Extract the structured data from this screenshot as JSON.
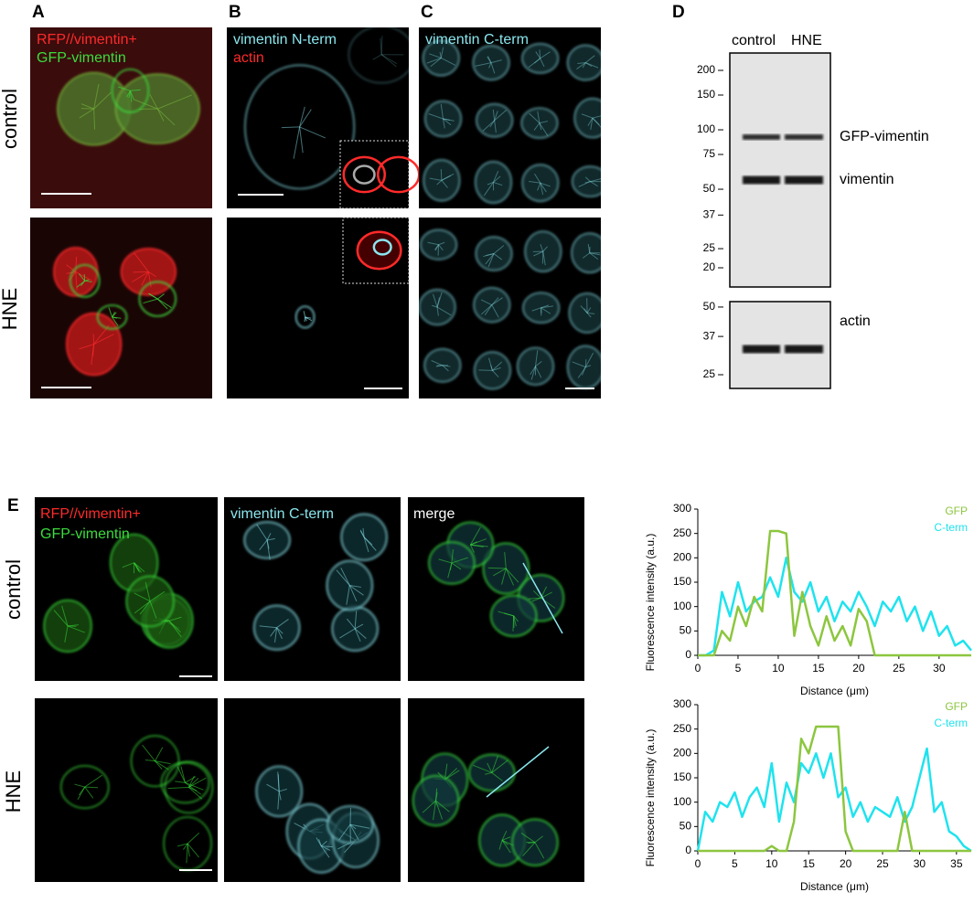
{
  "panel_a": {
    "label": "A",
    "channels": [
      "RFP//vimentin+",
      "GFP-vimentin"
    ]
  },
  "row_labels": [
    "control",
    "HNE"
  ],
  "panel_b": {
    "label": "B",
    "channels": [
      "vimentin N-term",
      "actin"
    ]
  },
  "panel_c": {
    "label": "C",
    "channels": [
      "vimentin C-term"
    ]
  },
  "panel_d": {
    "label": "D",
    "lanes": [
      "control",
      "HNE"
    ],
    "markers_top": [
      200,
      150,
      100,
      75,
      50,
      37,
      25,
      20
    ],
    "markers_bottom": [
      50,
      37,
      25
    ],
    "bands": [
      "GFP-vimentin",
      "vimentin",
      "actin"
    ]
  },
  "panel_e": {
    "label": "E",
    "channels": [
      "RFP//vimentin+",
      "GFP-vimentin"
    ],
    "columns": [
      "vimentin C-term",
      "merge"
    ]
  },
  "chart_data": [
    {
      "type": "line",
      "x_label": "Distance (μm)",
      "y_label": "Fluorescence intensity (a.u.)",
      "x": [
        0,
        1,
        2,
        3,
        4,
        5,
        6,
        7,
        8,
        9,
        10,
        11,
        12,
        13,
        14,
        15,
        16,
        17,
        18,
        19,
        20,
        21,
        22,
        23,
        24,
        25,
        26,
        27,
        28,
        29,
        30,
        31,
        32,
        33,
        34
      ],
      "series": [
        {
          "name": "GFP",
          "color": "#8cc63f",
          "values": [
            0,
            0,
            0,
            50,
            30,
            100,
            60,
            120,
            90,
            255,
            255,
            250,
            40,
            130,
            60,
            20,
            80,
            30,
            60,
            20,
            95,
            70,
            0,
            0,
            0,
            0,
            0,
            0,
            0,
            0,
            0,
            0,
            0,
            0,
            0
          ]
        },
        {
          "name": "C-term",
          "color": "#1ee3ee",
          "values": [
            0,
            0,
            10,
            130,
            80,
            150,
            90,
            110,
            120,
            160,
            120,
            200,
            130,
            110,
            150,
            90,
            120,
            70,
            110,
            90,
            130,
            100,
            60,
            110,
            90,
            120,
            70,
            100,
            50,
            90,
            40,
            60,
            20,
            30,
            10
          ]
        }
      ],
      "xlim": [
        0,
        34
      ],
      "ylim": [
        0,
        300
      ],
      "xticks": [
        0,
        5,
        10,
        15,
        20,
        25,
        30
      ],
      "yticks": [
        0,
        50,
        100,
        150,
        200,
        250,
        300
      ]
    },
    {
      "type": "line",
      "x_label": "Distance (μm)",
      "y_label": "Fluorescence intensity (a.u.)",
      "x": [
        0,
        1,
        2,
        3,
        4,
        5,
        6,
        7,
        8,
        9,
        10,
        11,
        12,
        13,
        14,
        15,
        16,
        17,
        18,
        19,
        20,
        21,
        22,
        23,
        24,
        25,
        26,
        27,
        28,
        29,
        30,
        31,
        32,
        33,
        34,
        35,
        36,
        37
      ],
      "series": [
        {
          "name": "GFP",
          "color": "#8cc63f",
          "values": [
            0,
            0,
            0,
            0,
            0,
            0,
            0,
            0,
            0,
            0,
            10,
            0,
            0,
            60,
            230,
            200,
            255,
            255,
            255,
            255,
            40,
            0,
            0,
            0,
            0,
            0,
            0,
            0,
            80,
            0,
            0,
            0,
            0,
            0,
            0,
            0,
            0,
            0
          ]
        },
        {
          "name": "C-term",
          "color": "#1ee3ee",
          "values": [
            0,
            80,
            60,
            100,
            90,
            120,
            70,
            110,
            130,
            90,
            180,
            60,
            140,
            100,
            180,
            160,
            200,
            150,
            200,
            110,
            130,
            70,
            100,
            60,
            90,
            80,
            70,
            110,
            60,
            90,
            150,
            210,
            80,
            100,
            40,
            30,
            10,
            0
          ]
        }
      ],
      "xlim": [
        0,
        37
      ],
      "ylim": [
        0,
        300
      ],
      "xticks": [
        0,
        5,
        10,
        15,
        20,
        25,
        30,
        35
      ],
      "yticks": [
        0,
        50,
        100,
        150,
        200,
        250,
        300
      ]
    }
  ]
}
